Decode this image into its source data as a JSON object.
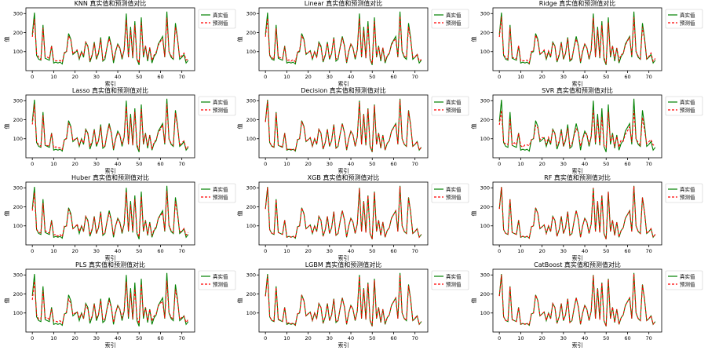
{
  "chart_data": {
    "type": "line",
    "x": [
      0,
      1,
      2,
      3,
      4,
      5,
      6,
      7,
      8,
      9,
      10,
      11,
      12,
      13,
      14,
      15,
      16,
      17,
      18,
      19,
      20,
      21,
      22,
      23,
      24,
      25,
      26,
      27,
      28,
      29,
      30,
      31,
      32,
      33,
      34,
      35,
      36,
      37,
      38,
      39,
      40,
      41,
      42,
      43,
      44,
      45,
      46,
      47,
      48,
      49,
      50,
      51,
      52,
      53,
      54,
      55,
      56,
      57,
      58,
      59,
      60,
      61,
      62,
      63,
      64,
      65,
      66,
      67,
      68,
      69,
      70,
      71,
      72,
      73
    ],
    "actual": [
      190,
      305,
      80,
      60,
      55,
      240,
      65,
      60,
      55,
      130,
      40,
      45,
      40,
      45,
      35,
      95,
      100,
      195,
      165,
      85,
      95,
      105,
      60,
      100,
      70,
      150,
      130,
      45,
      80,
      150,
      60,
      90,
      175,
      50,
      60,
      125,
      180,
      130,
      40,
      100,
      140,
      120,
      60,
      110,
      300,
      70,
      230,
      65,
      260,
      60,
      30,
      280,
      70,
      130,
      50,
      120,
      40,
      75,
      90,
      140,
      160,
      180,
      70,
      310,
      100,
      70,
      60,
      250,
      170,
      60,
      70,
      85,
      40,
      55
    ],
    "xlim": [
      -3,
      76
    ],
    "ylim": [
      0,
      330
    ],
    "xticks": [
      0,
      10,
      20,
      30,
      40,
      50,
      60,
      70
    ],
    "yticks": [
      100,
      200,
      300
    ],
    "xlabel": "索引",
    "ylabel": "值",
    "legend": [
      "真实值",
      "预测值"
    ],
    "colors": {
      "actual": "#008000",
      "predicted": "#ff0000"
    },
    "panels": [
      {
        "model": "KNN",
        "title": "KNN 真实值和预测值对比",
        "noise": 0.18,
        "seed": 1
      },
      {
        "model": "Linear",
        "title": "Linear 真实值和预测值对比",
        "noise": 0.15,
        "seed": 2
      },
      {
        "model": "Ridge",
        "title": "Ridge 真实值和预测值对比",
        "noise": 0.15,
        "seed": 3
      },
      {
        "model": "Lasso",
        "title": "Lasso 真实值和预测值对比",
        "noise": 0.15,
        "seed": 4
      },
      {
        "model": "Decision",
        "title": "Decision 真实值和预测值对比",
        "noise": 0.04,
        "seed": 5
      },
      {
        "model": "SVR",
        "title": "SVR 真实值和预测值对比",
        "noise": 0.3,
        "seed": 6
      },
      {
        "model": "Huber",
        "title": "Huber 真实值和预测值对比",
        "noise": 0.15,
        "seed": 7
      },
      {
        "model": "XGB",
        "title": "XGB 真实值和预测值对比",
        "noise": 0.02,
        "seed": 8
      },
      {
        "model": "RF",
        "title": "RF 真实值和预测值对比",
        "noise": 0.01,
        "seed": 9
      },
      {
        "model": "PLS",
        "title": "PLS 真实值和预测值对比",
        "noise": 0.22,
        "seed": 10
      },
      {
        "model": "LGBM",
        "title": "LGBM 真实值和预测值对比",
        "noise": 0.05,
        "seed": 11
      },
      {
        "model": "CatBoost",
        "title": "CatBoost 真实值和预测值对比",
        "noise": 0.02,
        "seed": 12
      }
    ]
  }
}
